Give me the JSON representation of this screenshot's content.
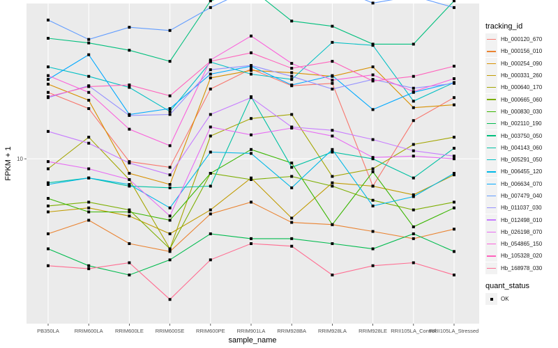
{
  "chart_data": {
    "type": "line",
    "title": "",
    "xlabel": "sample_name",
    "ylabel": "FPKM + 1",
    "yscale": "log10",
    "yticks": [
      10
    ],
    "ylim_log10": [
      0.48,
      1.49
    ],
    "grid": true,
    "legend_position": "right",
    "categories": [
      "PB350LA",
      "RRIM600LA",
      "RRIM600LE",
      "RRIM600SE",
      "RRIM600PE",
      "RRIM901LA",
      "RRIM928BA",
      "RRIM928LA",
      "RRIM928LE",
      "RRII105LA_Control",
      "RRII105LA_Stressed"
    ],
    "legend_title": "tracking_id",
    "legend2_title": "quant_status",
    "legend2_items": [
      "OK"
    ],
    "series": [
      {
        "name": "Hb_000120_670",
        "color": "#F8766D",
        "values": [
          16.2,
          14.4,
          9.8,
          9.4,
          16.6,
          19.2,
          17.0,
          17.3,
          8.2,
          13.2,
          15.6
        ]
      },
      {
        "name": "Hb_000156_010",
        "color": "#EA8331",
        "values": [
          5.8,
          6.4,
          5.4,
          5.1,
          6.7,
          7.3,
          6.3,
          6.2,
          5.9,
          5.6,
          6.0
        ]
      },
      {
        "name": "Hb_000254_090",
        "color": "#D89000",
        "values": [
          17.2,
          15.3,
          9.0,
          8.3,
          18.0,
          19.0,
          18.7,
          18.2,
          19.5,
          14.5,
          14.8
        ]
      },
      {
        "name": "Hb_000331_260",
        "color": "#C09B00",
        "values": [
          6.8,
          7.0,
          6.6,
          5.8,
          6.9,
          8.7,
          6.5,
          8.4,
          8.2,
          7.7,
          8.9
        ]
      },
      {
        "name": "Hb_000640_170",
        "color": "#A3A500",
        "values": [
          9.3,
          11.7,
          8.6,
          5.2,
          11.8,
          13.4,
          13.8,
          8.8,
          9.3,
          11.1,
          11.7
        ]
      },
      {
        "name": "Hb_000665_060",
        "color": "#7CAE00",
        "values": [
          7.1,
          7.3,
          6.9,
          5.2,
          9.0,
          8.6,
          8.8,
          8.2,
          7.4,
          6.9,
          7.3
        ]
      },
      {
        "name": "Hb_000830_030",
        "color": "#39B600",
        "values": [
          7.5,
          6.8,
          6.8,
          6.4,
          9.0,
          10.7,
          9.7,
          6.2,
          9.1,
          6.1,
          7.0
        ]
      },
      {
        "name": "Hb_002110_190",
        "color": "#00BB4E",
        "values": [
          5.2,
          4.6,
          4.3,
          4.8,
          5.8,
          5.6,
          5.6,
          5.4,
          5.2,
          5.8,
          5.1
        ]
      },
      {
        "name": "Hb_003750_050",
        "color": "#00BF7D",
        "values": [
          24.0,
          23.2,
          22.0,
          20.3,
          31.5,
          34.4,
          27.2,
          26.2,
          23.0,
          23.0,
          31.5
        ]
      },
      {
        "name": "Hb_004143_060",
        "color": "#00C1A3",
        "values": [
          8.4,
          8.7,
          8.2,
          8.1,
          8.2,
          15.7,
          9.4,
          10.5,
          10.0,
          8.7,
          10.8
        ]
      },
      {
        "name": "Hb_005291_050",
        "color": "#00BFC4",
        "values": [
          19.5,
          18.2,
          16.8,
          14.1,
          20.2,
          18.5,
          17.8,
          23.3,
          22.8,
          15.2,
          17.4
        ]
      },
      {
        "name": "Hb_006455_120",
        "color": "#00B8E7",
        "values": [
          8.3,
          8.7,
          8.3,
          7.0,
          10.5,
          10.4,
          8.1,
          10.7,
          7.1,
          7.6,
          9.0
        ]
      },
      {
        "name": "Hb_006634_070",
        "color": "#00A9FF",
        "values": [
          17.8,
          21.3,
          13.8,
          14.4,
          18.5,
          19.6,
          17.1,
          18.3,
          14.3,
          16.2,
          17.4
        ]
      },
      {
        "name": "Hb_007479_040",
        "color": "#619CFF",
        "values": [
          27.4,
          23.8,
          26.0,
          25.4,
          30.0,
          34.5,
          34.0,
          35.0,
          31.0,
          32.6,
          30.0
        ]
      },
      {
        "name": "Hb_011037_030",
        "color": "#9590FF",
        "values": [
          15.6,
          17.0,
          13.7,
          13.8,
          19.1,
          19.7,
          18.2,
          16.6,
          17.8,
          16.7,
          17.3
        ]
      },
      {
        "name": "Hb_012498_010",
        "color": "#C77CFF",
        "values": [
          12.2,
          11.2,
          9.7,
          8.9,
          13.8,
          15.6,
          12.6,
          12.3,
          11.5,
          10.6,
          10.2
        ]
      },
      {
        "name": "Hb_026198_070",
        "color": "#E76BF3",
        "values": [
          9.8,
          9.3,
          8.6,
          6.6,
          12.6,
          11.9,
          12.5,
          11.8,
          10.1,
          10.2,
          10.0
        ]
      },
      {
        "name": "Hb_054865_150",
        "color": "#FA62DB",
        "values": [
          18.3,
          16.2,
          12.4,
          11.0,
          20.5,
          24.4,
          20.0,
          17.7,
          18.4,
          16.3,
          17.9
        ]
      },
      {
        "name": "Hb_105328_020",
        "color": "#FF62BC",
        "values": [
          15.7,
          16.9,
          17.1,
          15.8,
          20.3,
          21.6,
          19.3,
          20.3,
          17.6,
          18.2,
          19.6
        ]
      },
      {
        "name": "Hb_168978_030",
        "color": "#FF6C91",
        "values": [
          4.6,
          4.5,
          4.7,
          3.6,
          4.8,
          5.4,
          5.3,
          4.3,
          4.6,
          4.7,
          4.3
        ]
      }
    ]
  }
}
